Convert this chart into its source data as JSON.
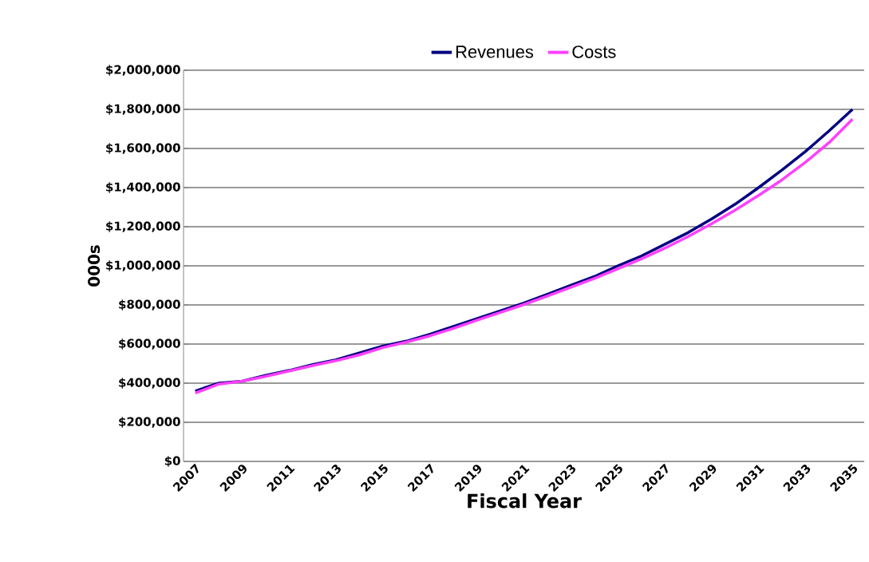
{
  "chart_data": {
    "type": "line",
    "xlabel": "Fiscal Year",
    "ylabel": "000s",
    "categories": [
      "2007",
      null,
      "2009",
      null,
      "2011",
      null,
      "2013",
      null,
      "2015",
      null,
      "2017",
      null,
      "2019",
      null,
      "2021",
      null,
      "2023",
      null,
      "2025",
      null,
      "2027",
      null,
      "2029",
      null,
      "2031",
      null,
      "2033",
      null,
      "2035"
    ],
    "series": [
      {
        "name": "Revenues",
        "color": "#000080",
        "values": [
          360000,
          400000,
          410000,
          440000,
          465000,
          495000,
          520000,
          555000,
          590000,
          615000,
          650000,
          690000,
          730000,
          770000,
          810000,
          855000,
          900000,
          945000,
          1000000,
          1050000,
          1110000,
          1170000,
          1240000,
          1315000,
          1400000,
          1490000,
          1585000,
          1690000,
          1800000
        ]
      },
      {
        "name": "Costs",
        "color": "#ff40ff",
        "values": [
          350000,
          395000,
          410000,
          435000,
          462000,
          490000,
          515000,
          545000,
          582000,
          610000,
          642000,
          680000,
          722000,
          762000,
          802000,
          845000,
          890000,
          935000,
          985000,
          1035000,
          1090000,
          1150000,
          1215000,
          1285000,
          1360000,
          1440000,
          1530000,
          1630000,
          1750000
        ]
      }
    ],
    "ylim": [
      0,
      2000000
    ],
    "yticks": [
      {
        "value": 0,
        "label": "$0"
      },
      {
        "value": 200000,
        "label": "$200,000"
      },
      {
        "value": 400000,
        "label": "$400,000"
      },
      {
        "value": 600000,
        "label": "$600,000"
      },
      {
        "value": 800000,
        "label": "$800,000"
      },
      {
        "value": 1000000,
        "label": "$1,000,000"
      },
      {
        "value": 1200000,
        "label": "$1,200,000"
      },
      {
        "value": 1400000,
        "label": "$1,400,000"
      },
      {
        "value": 1600000,
        "label": "$1,600,000"
      },
      {
        "value": 1800000,
        "label": "$1,800,000"
      },
      {
        "value": 2000000,
        "label": "$2,000,000"
      }
    ],
    "grid": "y",
    "legend": "top",
    "marker": "none",
    "line_style": "solid"
  }
}
